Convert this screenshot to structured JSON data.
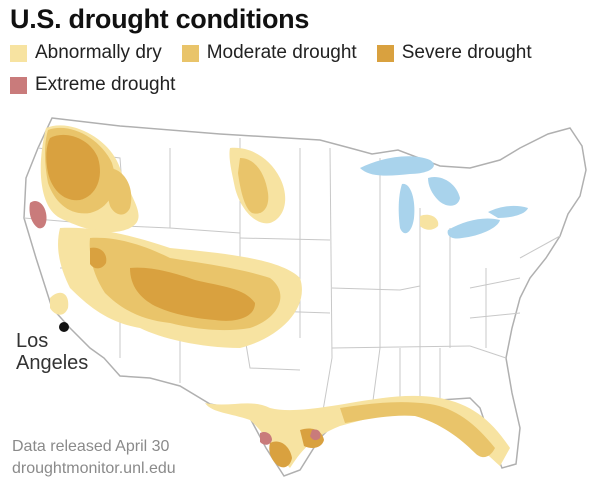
{
  "title": "U.S. drought conditions",
  "legend": [
    {
      "label": "Abnormally dry",
      "color": "#f7e3a1"
    },
    {
      "label": "Moderate drought",
      "color": "#e9c46a"
    },
    {
      "label": "Severe drought",
      "color": "#d9a13f"
    },
    {
      "label": "Extreme drought",
      "color": "#c97b7b"
    }
  ],
  "city": {
    "name_line1": "Los",
    "name_line2": "Angeles"
  },
  "source": {
    "line1": "Data released April 30",
    "line2": "droughtmonitor.unl.edu"
  },
  "colors": {
    "water": "#a9d3ec",
    "border": "#c8c8c8",
    "outline": "#b0b0b0"
  }
}
